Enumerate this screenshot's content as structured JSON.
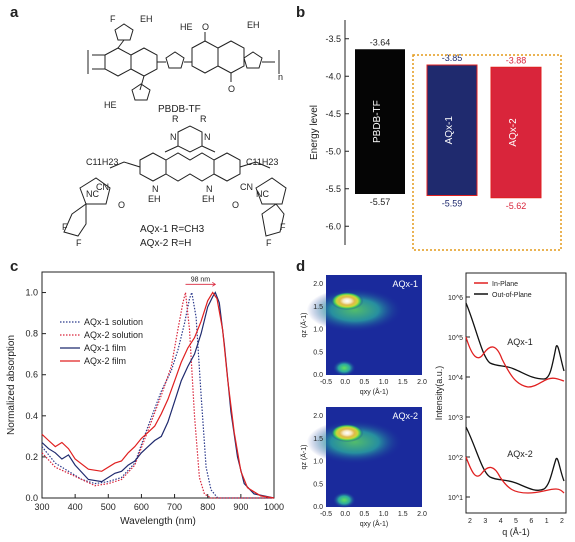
{
  "panels": {
    "a": "a",
    "b": "b",
    "c": "c",
    "d": "d"
  },
  "panel_a": {
    "labels": [
      "F",
      "EH",
      "EH",
      "HE",
      "O",
      "O",
      "HE",
      "n",
      "PBDB-TF",
      "R",
      "R",
      "N",
      "N",
      "C11H23",
      "C11H23",
      "NC",
      "CN",
      "CN",
      "NC",
      "N",
      "EH",
      "N",
      "EH",
      "O",
      "O",
      "F",
      "F",
      "F",
      "F",
      "AQx-1 R=CH3",
      "AQx-2 R=H"
    ]
  },
  "chart_data": [
    {
      "type": "bar",
      "panel": "b",
      "ylabel": "Energy level",
      "ylim": [
        -6.25,
        -3.25
      ],
      "yticks": [
        "-3.5",
        "-4.0",
        "-4.5",
        "-5.0",
        "-5.5",
        "-6.0"
      ],
      "bars": [
        {
          "name": "PBDB-TF",
          "top": -3.64,
          "bottom": -5.57,
          "top_label": "-3.64",
          "bottom_label": "-5.57",
          "color": "#050505",
          "label_color": "#ffffff"
        },
        {
          "name": "AQx-1",
          "top": -3.85,
          "bottom": -5.59,
          "top_label": "-3.85",
          "bottom_label": "-5.59",
          "color": "#1f2a6e",
          "label_color": "#ffffff"
        },
        {
          "name": "AQx-2",
          "top": -3.88,
          "bottom": -5.62,
          "top_label": "-3.88",
          "bottom_label": "-5.62",
          "color": "#d9253b",
          "label_color": "#ffffff"
        }
      ]
    },
    {
      "type": "line",
      "panel": "c",
      "xlabel": "Wavelength (nm)",
      "ylabel": "Normalized absorption",
      "xlim": [
        300,
        1000
      ],
      "ylim": [
        0,
        1.1
      ],
      "xticks": [
        "300",
        "400",
        "500",
        "600",
        "700",
        "800",
        "900",
        "1000"
      ],
      "yticks": [
        "0.0",
        "0.2",
        "0.4",
        "0.6",
        "0.8",
        "1.0"
      ],
      "annotation": "98 nm",
      "legend": "left",
      "series": [
        {
          "name": "AQx-1 solution",
          "color": "#2b3a8c",
          "dash": "dotted",
          "points": [
            [
              300,
              0.25
            ],
            [
              340,
              0.17
            ],
            [
              380,
              0.13
            ],
            [
              420,
              0.09
            ],
            [
              460,
              0.07
            ],
            [
              500,
              0.08
            ],
            [
              540,
              0.1
            ],
            [
              580,
              0.17
            ],
            [
              620,
              0.35
            ],
            [
              660,
              0.52
            ],
            [
              690,
              0.62
            ],
            [
              710,
              0.72
            ],
            [
              730,
              0.85
            ],
            [
              745,
              0.97
            ],
            [
              752,
              1.0
            ],
            [
              765,
              0.88
            ],
            [
              780,
              0.5
            ],
            [
              795,
              0.15
            ],
            [
              810,
              0.04
            ],
            [
              830,
              0.0
            ],
            [
              1000,
              0.0
            ]
          ]
        },
        {
          "name": "AQx-2 solution",
          "color": "#d9253b",
          "dash": "dotted",
          "points": [
            [
              300,
              0.22
            ],
            [
              340,
              0.15
            ],
            [
              380,
              0.12
            ],
            [
              420,
              0.09
            ],
            [
              460,
              0.06
            ],
            [
              500,
              0.07
            ],
            [
              540,
              0.09
            ],
            [
              580,
              0.16
            ],
            [
              620,
              0.33
            ],
            [
              660,
              0.5
            ],
            [
              690,
              0.64
            ],
            [
              710,
              0.82
            ],
            [
              725,
              0.95
            ],
            [
              733,
              1.0
            ],
            [
              745,
              0.82
            ],
            [
              760,
              0.4
            ],
            [
              775,
              0.1
            ],
            [
              790,
              0.02
            ],
            [
              810,
              0.0
            ],
            [
              1000,
              0.0
            ]
          ]
        },
        {
          "name": "AQx-1 film",
          "color": "#1f2a6e",
          "dash": "solid",
          "points": [
            [
              300,
              0.27
            ],
            [
              320,
              0.24
            ],
            [
              340,
              0.22
            ],
            [
              360,
              0.19
            ],
            [
              380,
              0.21
            ],
            [
              400,
              0.16
            ],
            [
              440,
              0.09
            ],
            [
              480,
              0.08
            ],
            [
              520,
              0.12
            ],
            [
              540,
              0.13
            ],
            [
              560,
              0.16
            ],
            [
              580,
              0.18
            ],
            [
              600,
              0.22
            ],
            [
              620,
              0.25
            ],
            [
              640,
              0.28
            ],
            [
              660,
              0.3
            ],
            [
              680,
              0.37
            ],
            [
              700,
              0.47
            ],
            [
              720,
              0.57
            ],
            [
              740,
              0.64
            ],
            [
              760,
              0.7
            ],
            [
              780,
              0.8
            ],
            [
              800,
              0.93
            ],
            [
              815,
              0.98
            ],
            [
              823,
              1.0
            ],
            [
              835,
              0.95
            ],
            [
              850,
              0.75
            ],
            [
              870,
              0.42
            ],
            [
              890,
              0.2
            ],
            [
              910,
              0.07
            ],
            [
              940,
              0.02
            ],
            [
              1000,
              0.0
            ]
          ]
        },
        {
          "name": "AQx-2 film",
          "color": "#e02020",
          "dash": "solid",
          "points": [
            [
              300,
              0.31
            ],
            [
              320,
              0.28
            ],
            [
              340,
              0.25
            ],
            [
              360,
              0.27
            ],
            [
              380,
              0.24
            ],
            [
              400,
              0.19
            ],
            [
              440,
              0.14
            ],
            [
              480,
              0.13
            ],
            [
              520,
              0.17
            ],
            [
              540,
              0.18
            ],
            [
              560,
              0.22
            ],
            [
              580,
              0.25
            ],
            [
              600,
              0.29
            ],
            [
              620,
              0.32
            ],
            [
              640,
              0.35
            ],
            [
              660,
              0.41
            ],
            [
              680,
              0.48
            ],
            [
              700,
              0.57
            ],
            [
              720,
              0.66
            ],
            [
              740,
              0.73
            ],
            [
              760,
              0.78
            ],
            [
              780,
              0.86
            ],
            [
              800,
              0.96
            ],
            [
              815,
              1.0
            ],
            [
              828,
              0.97
            ],
            [
              845,
              0.82
            ],
            [
              860,
              0.58
            ],
            [
              880,
              0.32
            ],
            [
              900,
              0.13
            ],
            [
              920,
              0.05
            ],
            [
              960,
              0.01
            ],
            [
              1000,
              0.0
            ]
          ]
        }
      ]
    },
    {
      "type": "heatmap",
      "panel": "d",
      "xlabel": "qxy (Å-1)",
      "ylabel": "qz (Å-1)",
      "xticks": [
        "-0.5",
        "0.0",
        "0.5",
        "1.0",
        "1.5",
        "2.0"
      ],
      "yticks": [
        "0.0",
        "0.5",
        "1.0",
        "1.5",
        "2.0"
      ],
      "maps": [
        {
          "name": "AQx-1"
        },
        {
          "name": "AQx-2"
        }
      ]
    },
    {
      "type": "line",
      "panel": "d",
      "xlabel": "q (Å-1)",
      "ylabel": "Intensity(a.u.)",
      "yscale": "log",
      "xticks": [
        "2",
        "3",
        "4",
        "5",
        "6",
        "1",
        "2"
      ],
      "yticks_top": [
        "10^4",
        "10^5",
        "10^6"
      ],
      "yticks_bottom": [
        "10^1",
        "10^2",
        "10^3"
      ],
      "legend": [
        {
          "name": "In-Plane",
          "color": "#e02020"
        },
        {
          "name": "Out-of-Plane",
          "color": "#111111"
        }
      ],
      "sample_labels": [
        "AQx-1",
        "AQx-2"
      ]
    }
  ],
  "colors": {
    "orange_dotted_box": "#e49a1a",
    "heatmap_bg": "#1a2a9c"
  }
}
